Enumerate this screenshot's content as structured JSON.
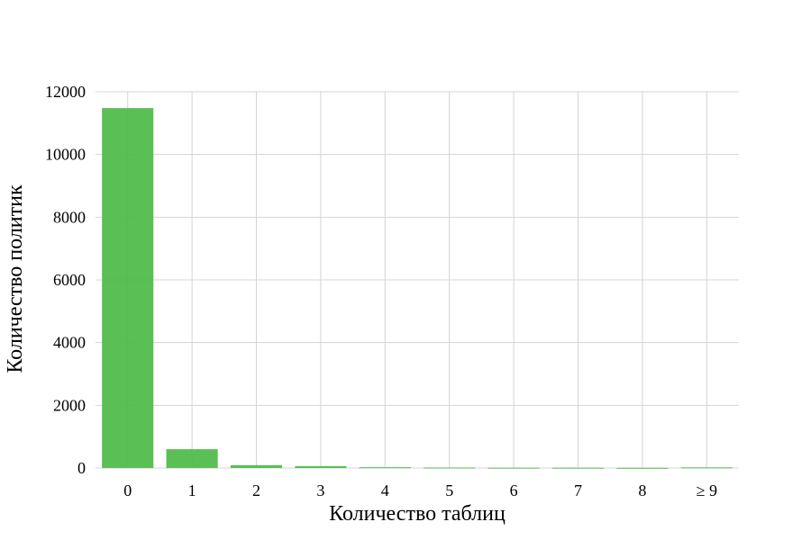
{
  "chart_data": {
    "type": "bar",
    "categories": [
      "0",
      "1",
      "2",
      "3",
      "4",
      "5",
      "6",
      "7",
      "8",
      "≥ 9"
    ],
    "values": [
      11480,
      600,
      90,
      60,
      25,
      15,
      10,
      8,
      5,
      20
    ],
    "xlabel": "Количество таблиц",
    "ylabel": "Количество политик",
    "ylim": [
      0,
      12000
    ],
    "yticks": [
      0,
      2000,
      4000,
      6000,
      8000,
      10000,
      12000
    ],
    "grid": true,
    "bar_color": "#4cbb47"
  }
}
